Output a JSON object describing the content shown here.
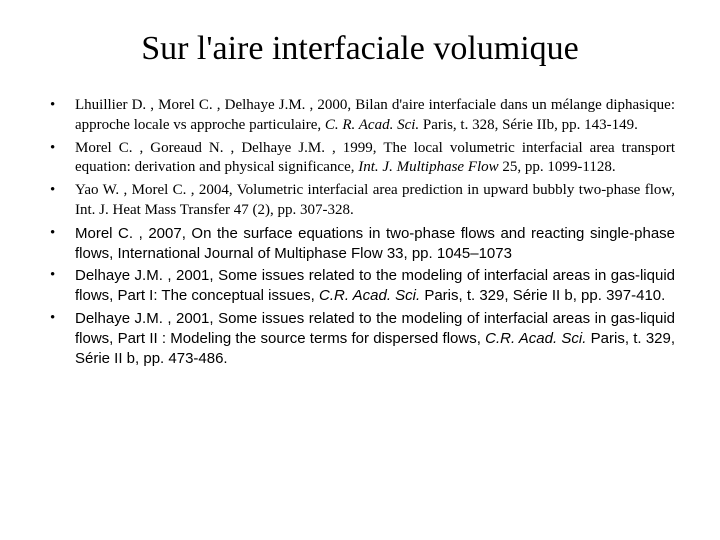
{
  "title": "Sur l'aire interfaciale volumique",
  "items": [
    {
      "font": "times",
      "segments": [
        {
          "text": "Lhuillier D. , Morel C. , Delhaye J.M. , 2000, Bilan d'aire interfaciale dans un mélange diphasique: approche locale vs approche particulaire, ",
          "italic": false
        },
        {
          "text": "C. R. Acad. Sci.",
          "italic": true
        },
        {
          "text": " Paris, t. 328, Série IIb, pp. 143-149.",
          "italic": false
        }
      ]
    },
    {
      "font": "times",
      "segments": [
        {
          "text": "Morel C. , Goreaud N. , Delhaye J.M. , 1999, The local volumetric interfacial area transport equation: derivation and physical significance, ",
          "italic": false
        },
        {
          "text": "Int. J. Multiphase Flow",
          "italic": true
        },
        {
          "text": " 25, pp. 1099-1128.",
          "italic": false
        }
      ]
    },
    {
      "font": "times",
      "segments": [
        {
          "text": "Yao W. , Morel C. , 2004, Volumetric interfacial area prediction in upward bubbly two-phase flow, Int. J. Heat Mass Transfer 47 (2), pp. 307-328.",
          "italic": false
        }
      ]
    },
    {
      "font": "arial",
      "segments": [
        {
          "text": "Morel C. , 2007, On the surface equations in two-phase flows and reacting single-phase flows, International Journal of Multiphase Flow 33, pp. 1045–1073",
          "italic": false
        }
      ]
    },
    {
      "font": "arial",
      "segments": [
        {
          "text": "Delhaye J.M. , 2001, Some issues related to the modeling of interfacial areas in gas-liquid flows, Part I: The conceptual issues, ",
          "italic": false
        },
        {
          "text": "C.R. Acad. Sci.",
          "italic": true
        },
        {
          "text": " Paris, t. 329, Série II b, pp. 397-410.",
          "italic": false
        }
      ]
    },
    {
      "font": "arial",
      "segments": [
        {
          "text": "Delhaye J.M. , 2001, Some issues related to the modeling of interfacial areas in gas-liquid flows, Part II : Modeling the source terms for dispersed flows, ",
          "italic": false
        },
        {
          "text": "C.R. Acad. Sci.",
          "italic": true
        },
        {
          "text": " Paris, t. 329, Série II b, pp. 473-486.",
          "italic": false
        }
      ]
    }
  ]
}
